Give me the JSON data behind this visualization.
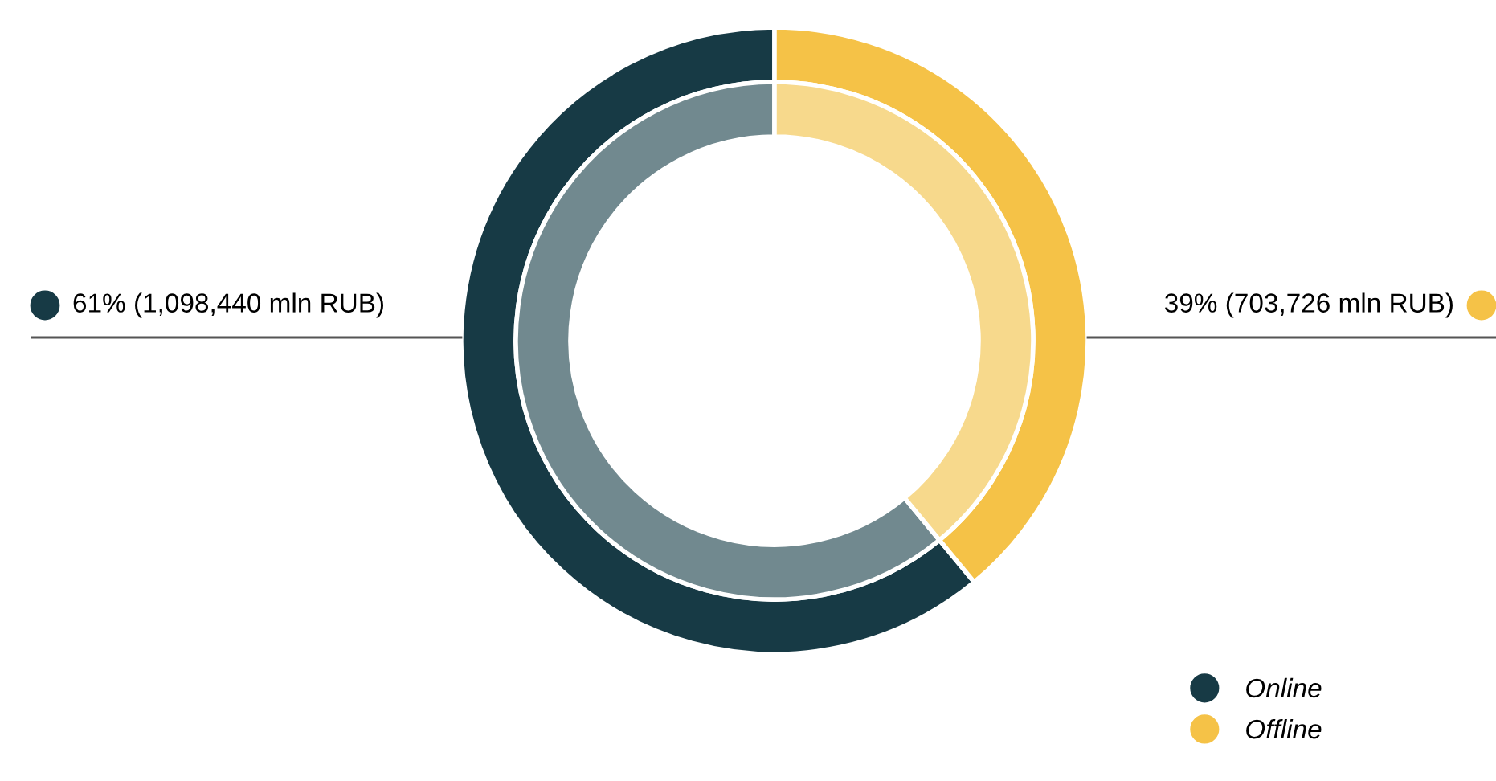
{
  "chart_data": {
    "type": "donut",
    "categories": [
      "Online",
      "Offline"
    ],
    "series": [
      {
        "values": [
          61,
          39
        ],
        "colors": [
          "#71898f",
          "#f7d98c"
        ]
      },
      {
        "values": [
          61,
          39
        ],
        "colors": [
          "#173a45",
          "#f5c247"
        ]
      }
    ],
    "value_labels": [
      "61% (1,098,440 mln RUB)",
      "39% (703,726 mln RUB)"
    ],
    "legend": "bottom right"
  }
}
